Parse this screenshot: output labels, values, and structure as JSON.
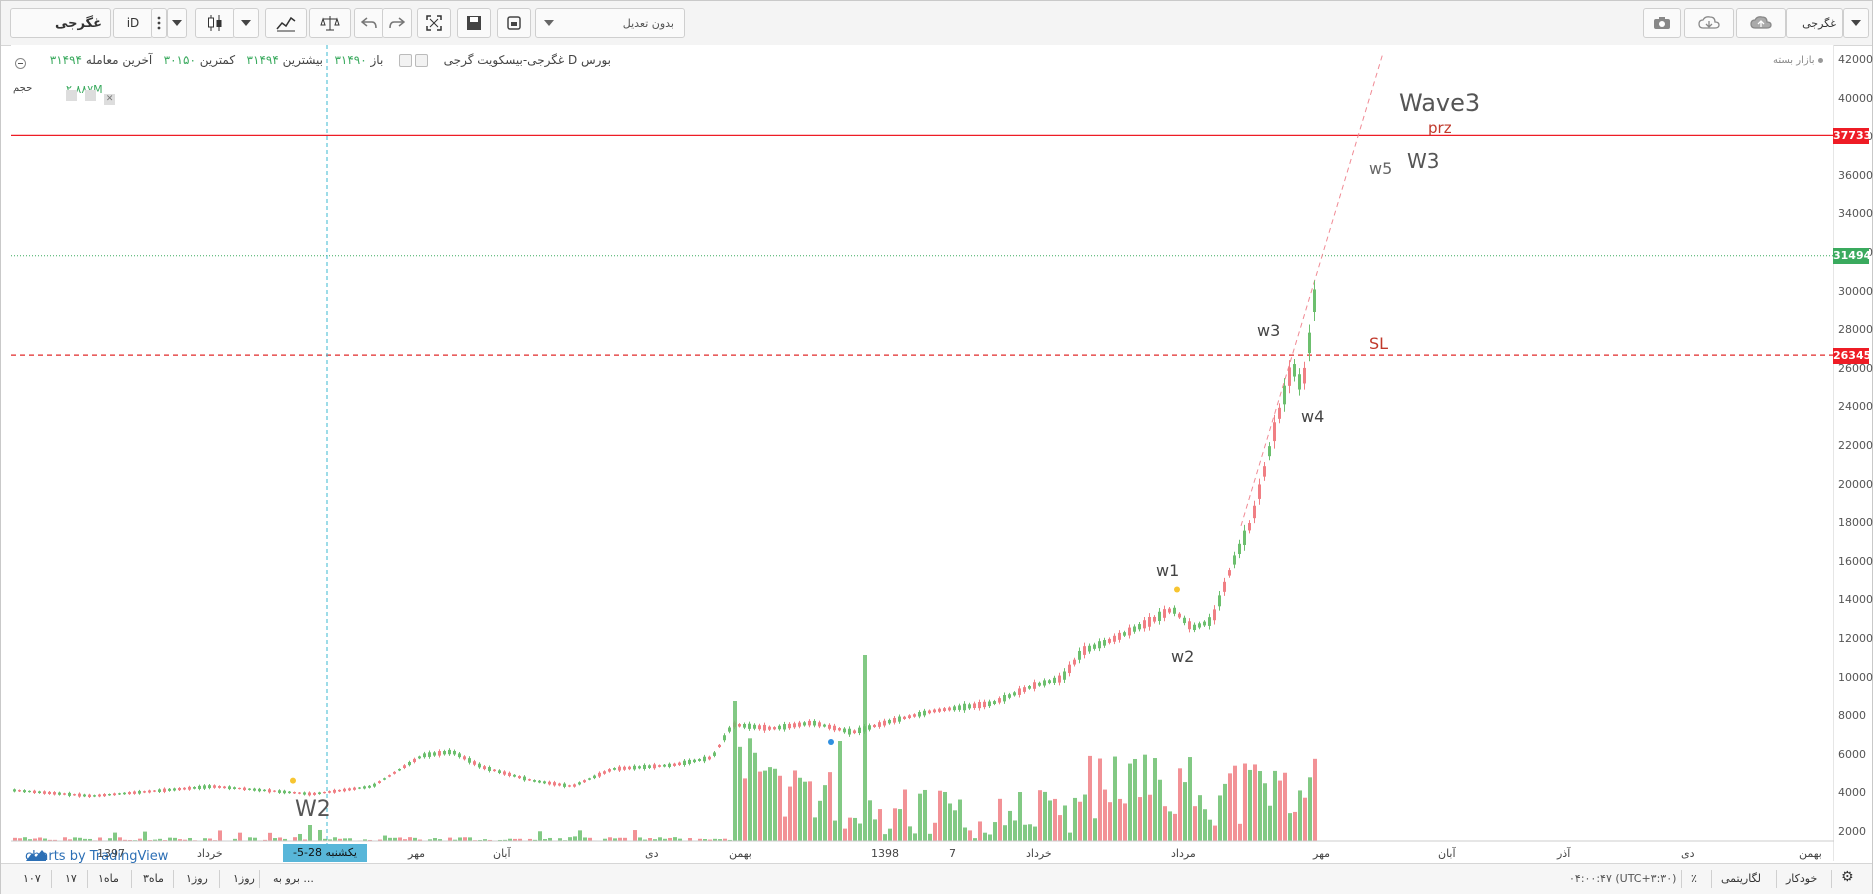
{
  "toolbar": {
    "symbol": "غگرجی",
    "interval": "iD",
    "adjustment": "بدون تعدیل",
    "breadcrumb_symbol": "غگرجی"
  },
  "legend": {
    "exchange": "بورس D غگرجی-بیسکویت گرجی",
    "open_label": "باز",
    "open_value": "۳۱۴۹۰",
    "high_label": "بیشترین",
    "high_value": "۳۱۴۹۴",
    "low_label": "کمترین",
    "low_value": "۳۰۱۵۰",
    "last_label": "آخرین معامله",
    "last_value": "۳۱۴۹۴",
    "market_status": "بازار بسته",
    "volume_label": "حجم",
    "volume_value": "۲.۸۸۷M"
  },
  "price_axis": [
    "42000",
    "40000",
    "38000",
    "36000",
    "34000",
    "32000",
    "30000",
    "28000",
    "26000",
    "24000",
    "22000",
    "20000",
    "18000",
    "16000",
    "14000",
    "12000",
    "10000",
    "8000",
    "6000",
    "4000",
    "2000"
  ],
  "price_badges": {
    "prz": "37733",
    "last": "31494",
    "sl": "26345"
  },
  "time_axis": [
    "1397",
    "خرداد",
    "مهر",
    "آبان",
    "دی",
    "بهمن",
    "1398",
    "7",
    "خرداد",
    "مرداد",
    "مهر",
    "آبان",
    "آذر",
    "دی",
    "بهمن"
  ],
  "cursor_time": "یکشنبه 28-5-1397",
  "annotations": {
    "wave3": "Wave3",
    "prz": "prz",
    "W3_big": "W3",
    "w5": "w5",
    "w3": "w3",
    "sl": "SL",
    "w4": "w4",
    "w1": "w1",
    "w2": "w2",
    "W2_big": "W2"
  },
  "branding": {
    "text": "charts by TradingView"
  },
  "bottom": {
    "periods": [
      "۱۰۷",
      "۱۷",
      "۱ماه",
      "۳ماه",
      "۱روز",
      "۱روز",
      "برو به ..."
    ],
    "timezone": "۰۴:۰۰:۴۷ (UTC+۳:۳۰)",
    "percent": "٪",
    "log": "لگاریتمی",
    "auto": "خودکار"
  },
  "colors": {
    "up": "#6cbf6e",
    "down": "#f07f84",
    "prz_line": "#ee1c25",
    "sl_line": "#e02a2a",
    "last_line": "#3aaa5e",
    "cursor": "#3bbad1"
  }
}
